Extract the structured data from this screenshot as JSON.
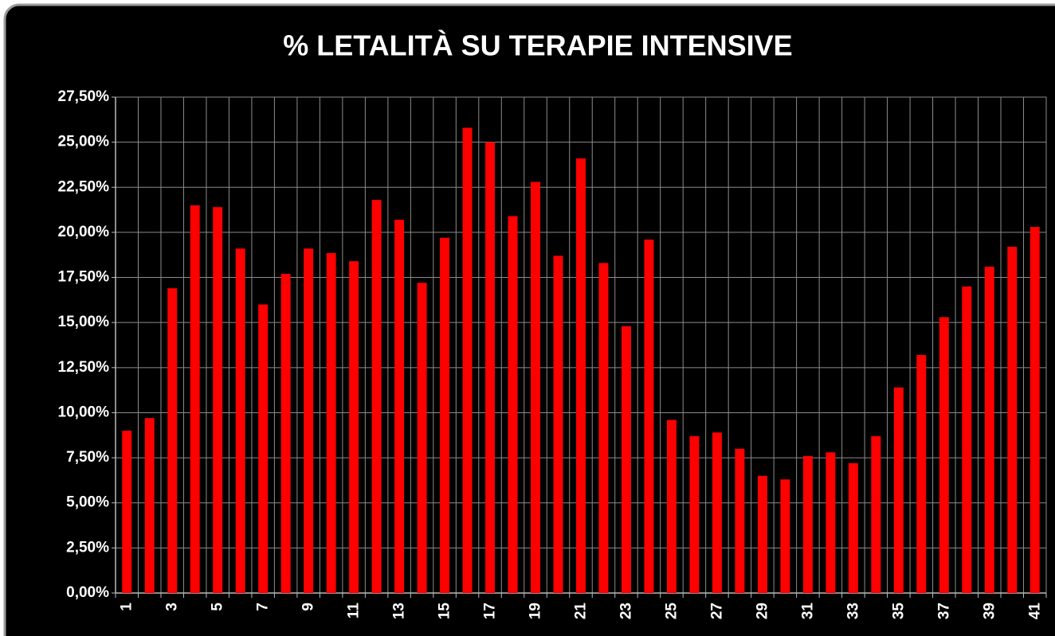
{
  "chart_data": {
    "type": "bar",
    "title": "% LETALITÀ SU TERAPIE INTENSIVE",
    "categories": [
      "1",
      null,
      "3",
      null,
      "5",
      null,
      "7",
      null,
      "9",
      null,
      "11",
      null,
      "13",
      null,
      "15",
      null,
      "17",
      null,
      "19",
      null,
      "21",
      null,
      "23",
      null,
      "25",
      null,
      "27",
      null,
      "29",
      null,
      "31",
      null,
      "33",
      null,
      "35",
      null,
      "37",
      null,
      "39",
      null,
      "41"
    ],
    "values": [
      9.0,
      9.7,
      16.9,
      21.5,
      21.4,
      19.1,
      16.0,
      17.7,
      19.1,
      18.85,
      18.4,
      21.8,
      20.7,
      17.2,
      19.7,
      25.8,
      25.0,
      20.9,
      22.8,
      18.7,
      24.1,
      18.3,
      14.8,
      19.6,
      9.6,
      8.7,
      8.9,
      8.0,
      6.5,
      6.3,
      7.6,
      7.8,
      7.2,
      8.7,
      11.4,
      13.2,
      15.3,
      17.0,
      18.1,
      19.2,
      20.3
    ],
    "color": "#ff0000",
    "ylim": [
      0,
      27.5
    ],
    "yticks": [
      {
        "value": 0,
        "label": "0,00%"
      },
      {
        "value": 2.5,
        "label": "2,50%"
      },
      {
        "value": 5,
        "label": "5,00%"
      },
      {
        "value": 7.5,
        "label": "7,50%"
      },
      {
        "value": 10,
        "label": "10,00%"
      },
      {
        "value": 12.5,
        "label": "12,50%"
      },
      {
        "value": 15,
        "label": "15,00%"
      },
      {
        "value": 17.5,
        "label": "17,50%"
      },
      {
        "value": 20,
        "label": "20,00%"
      },
      {
        "value": 22.5,
        "label": "22,50%"
      },
      {
        "value": 25,
        "label": "25,00%"
      },
      {
        "value": 27.5,
        "label": "27,50%"
      }
    ],
    "grid": true
  }
}
